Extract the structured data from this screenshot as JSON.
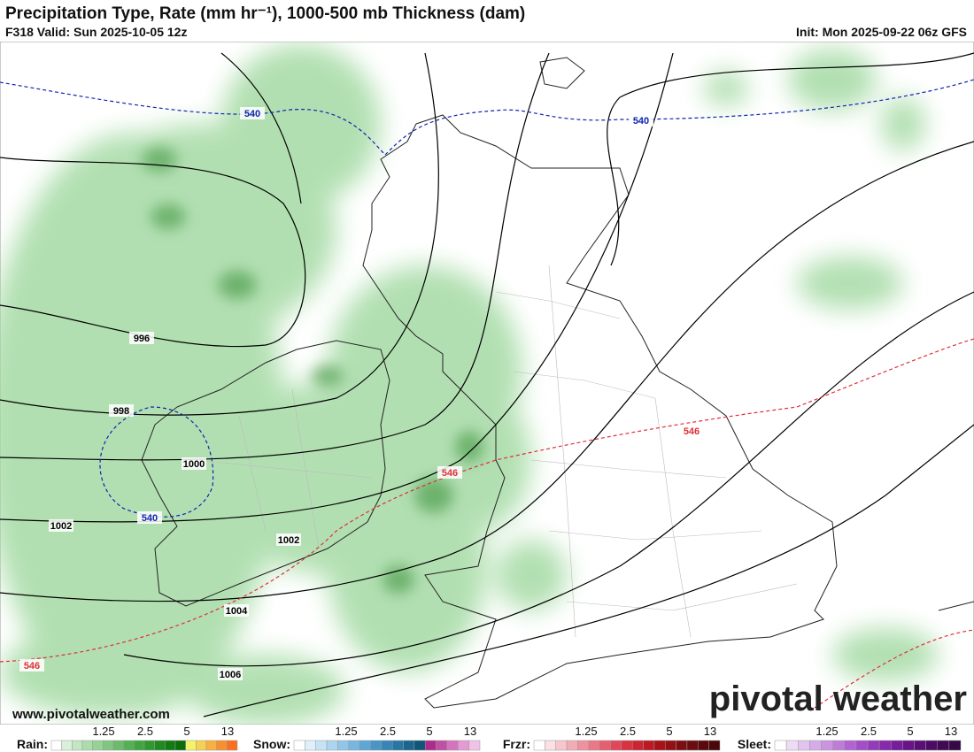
{
  "header": {
    "title": "Precipitation Type, Rate (mm hr⁻¹), 1000-500 mb Thickness (dam)",
    "valid": "F318 Valid: Sun 2025-10-05 12z",
    "init": "Init: Mon 2025-09-22 06z GFS"
  },
  "map": {
    "thickness_labels": [
      540,
      540,
      540,
      546,
      546,
      546
    ],
    "pressure_labels": [
      996,
      998,
      1000,
      1002,
      1002,
      1004,
      1006
    ]
  },
  "footer": {
    "url": "www.pivotalweather.com",
    "logo": "pivotal weather"
  },
  "legend": [
    {
      "label": "Rain:",
      "ticks": [
        1.25,
        2.5,
        5,
        13
      ],
      "colors": [
        "#ffffff",
        "#d8f0d8",
        "#c2e6c2",
        "#acdcac",
        "#96d196",
        "#80c680",
        "#6abb6a",
        "#55b055",
        "#40a540",
        "#2f982f",
        "#1f8a1f",
        "#127c12",
        "#0b6e0b",
        "#f3f36a",
        "#f6d050",
        "#f8b040",
        "#f99030",
        "#f97020"
      ]
    },
    {
      "label": "Snow:",
      "ticks": [
        1.25,
        2.5,
        5,
        13
      ],
      "colors": [
        "#ffffff",
        "#e0f0fa",
        "#c6e3f5",
        "#acd5ef",
        "#92c6e8",
        "#78b6df",
        "#5ea6d4",
        "#4895c6",
        "#3785b6",
        "#2776a4",
        "#1a6690",
        "#115679",
        "#ad2b8a",
        "#c14fa3",
        "#d574bc",
        "#e49bd3",
        "#f0c2e8"
      ]
    },
    {
      "label": "Frzr:",
      "ticks": [
        1.25,
        2.5,
        5,
        13
      ],
      "colors": [
        "#ffffff",
        "#fbe0e4",
        "#f6c6cd",
        "#f2acb6",
        "#ee929e",
        "#ea7887",
        "#e55f6f",
        "#e04758",
        "#d83341",
        "#cc2530",
        "#bb1a22",
        "#a71218",
        "#931015",
        "#7e0e12",
        "#6a0c10",
        "#5a0a0d",
        "#4b080b"
      ]
    },
    {
      "label": "Sleet:",
      "ticks": [
        1.25,
        2.5,
        5,
        13
      ],
      "colors": [
        "#ffffff",
        "#eedcf5",
        "#e2c4ee",
        "#d6ace7",
        "#ca94e0",
        "#be7cd9",
        "#b164d1",
        "#a34dc7",
        "#953abb",
        "#8629ab",
        "#771c9a",
        "#681488",
        "#5a0f76",
        "#4c0c64",
        "#400a54",
        "#350846"
      ]
    }
  ]
}
